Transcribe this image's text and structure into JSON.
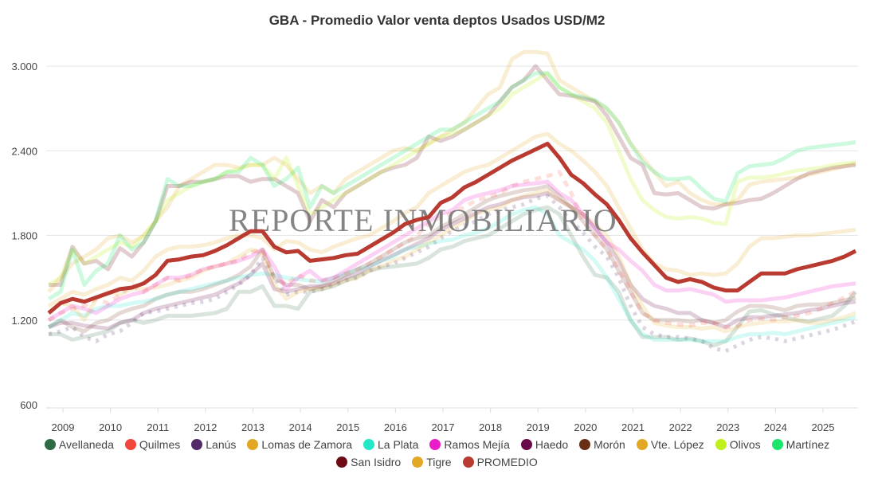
{
  "title": "GBA - Promedio Valor venta deptos Usados USD/M2",
  "watermark": "REPORTE INMOBILIARIO",
  "y_axis": {
    "ticks": [
      {
        "value": 3000,
        "label": "3.000"
      },
      {
        "value": 2400,
        "label": "2.400"
      },
      {
        "value": 1800,
        "label": "1.800"
      },
      {
        "value": 1200,
        "label": "1.200"
      },
      {
        "value": 600,
        "label": "600"
      }
    ]
  },
  "x_axis": {
    "ticks": [
      "2009",
      "2010",
      "2011",
      "2012",
      "2013",
      "2014",
      "2015",
      "2016",
      "2017",
      "2018",
      "2019",
      "2020",
      "2021",
      "2022",
      "2023",
      "2024",
      "2025"
    ]
  },
  "legend": {
    "row1": [
      {
        "label": "Avellaneda",
        "color": "#2e6b45"
      },
      {
        "label": "Quilmes",
        "color": "#f0473a"
      },
      {
        "label": "Lanús",
        "color": "#54296a"
      },
      {
        "label": "Lomas de Zamora",
        "color": "#e2a824"
      },
      {
        "label": "La Plata",
        "color": "#22e8c8"
      },
      {
        "label": "Ramos Mejía",
        "color": "#ec1bc8"
      },
      {
        "label": "Haedo",
        "color": "#6b0a4a"
      },
      {
        "label": "Morón",
        "color": "#6a2e16"
      },
      {
        "label": "Vte. López",
        "color": "#e2a824"
      },
      {
        "label": "Olivos",
        "color": "#bff01b"
      },
      {
        "label": "Martínez",
        "color": "#1be56a"
      }
    ],
    "row2": [
      {
        "label": "San Isidro",
        "color": "#6e0a14"
      },
      {
        "label": "Tigre",
        "color": "#e2a824"
      },
      {
        "label": "PROMEDIO",
        "color": "#b83a30"
      }
    ]
  },
  "chart_data": {
    "type": "line",
    "title": "GBA - Promedio Valor venta deptos Usados USD/M2",
    "xlabel": "",
    "ylabel": "USD/M2",
    "ylim": [
      600,
      3150
    ],
    "grid": true,
    "legend_position": "bottom",
    "x_start": 2008.7,
    "x_step": 0.25,
    "series": [
      {
        "name": "PROMEDIO",
        "color": "#b83a30",
        "opacity": 1,
        "width": 5,
        "dash": "",
        "values": [
          1250,
          1320,
          1350,
          1330,
          1360,
          1390,
          1420,
          1430,
          1460,
          1520,
          1620,
          1630,
          1650,
          1660,
          1690,
          1730,
          1780,
          1830,
          1830,
          1720,
          1680,
          1690,
          1620,
          1630,
          1640,
          1660,
          1670,
          1720,
          1770,
          1820,
          1880,
          1910,
          1930,
          2030,
          2070,
          2140,
          2180,
          2230,
          2280,
          2330,
          2370,
          2410,
          2450,
          2350,
          2230,
          2170,
          2090,
          2020,
          1910,
          1780,
          1680,
          1590,
          1500,
          1470,
          1490,
          1470,
          1430,
          1410,
          1410,
          1470,
          1530,
          1530,
          1530,
          1560,
          1580,
          1600,
          1620,
          1650,
          1690
        ]
      },
      {
        "name": "Martínez",
        "color": "#1be56a",
        "opacity": 0.22,
        "width": 5,
        "dash": "",
        "values": [
          1350,
          1400,
          1700,
          1450,
          1550,
          1600,
          1800,
          1700,
          1750,
          1900,
          2200,
          2150,
          2150,
          2180,
          2200,
          2250,
          2250,
          2350,
          2300,
          2150,
          2200,
          2280,
          2000,
          2150,
          2100,
          2150,
          2200,
          2250,
          2300,
          2350,
          2400,
          2450,
          2500,
          2550,
          2550,
          2600,
          2650,
          2700,
          2750,
          2850,
          2900,
          2950,
          2950,
          2850,
          2800,
          2780,
          2760,
          2700,
          2600,
          2450,
          2320,
          2250,
          2200,
          2200,
          2210,
          2130,
          2060,
          2040,
          2240,
          2290,
          2300,
          2310,
          2350,
          2400,
          2420,
          2430,
          2440,
          2450,
          2460
        ]
      },
      {
        "name": "Olivos",
        "color": "#bff01b",
        "opacity": 0.22,
        "width": 5,
        "dash": "",
        "values": [
          1450,
          1500,
          1700,
          1600,
          1650,
          1700,
          1750,
          1720,
          1800,
          1900,
          2050,
          2100,
          2150,
          2180,
          2200,
          2250,
          2270,
          2300,
          2300,
          2200,
          2350,
          2150,
          1950,
          2000,
          2050,
          2100,
          2150,
          2200,
          2250,
          2300,
          2350,
          2400,
          2450,
          2500,
          2520,
          2550,
          2600,
          2650,
          2700,
          2800,
          2850,
          2900,
          2950,
          2850,
          2800,
          2750,
          2700,
          2600,
          2400,
          2200,
          2050,
          1980,
          1930,
          1920,
          1930,
          1920,
          1890,
          1880,
          2180,
          2210,
          2210,
          2220,
          2240,
          2260,
          2270,
          2280,
          2300,
          2310,
          2320
        ]
      },
      {
        "name": "San Isidro",
        "color": "#6e0a14",
        "opacity": 0.2,
        "width": 5,
        "dash": "",
        "values": [
          1450,
          1450,
          1720,
          1600,
          1620,
          1560,
          1710,
          1650,
          1750,
          1900,
          2150,
          2150,
          2180,
          2180,
          2200,
          2220,
          2220,
          2180,
          2200,
          2200,
          2150,
          2100,
          1900,
          2050,
          2000,
          2100,
          2150,
          2200,
          2250,
          2280,
          2300,
          2350,
          2500,
          2470,
          2500,
          2550,
          2600,
          2650,
          2750,
          2850,
          2900,
          3000,
          2900,
          2800,
          2790,
          2770,
          2750,
          2650,
          2500,
          2350,
          2300,
          2100,
          2090,
          2100,
          2050,
          2000,
          1990,
          2020,
          2030,
          2050,
          2060,
          2100,
          2150,
          2200,
          2240,
          2260,
          2280,
          2290,
          2300
        ]
      },
      {
        "name": "Tigre",
        "color": "#e2a824",
        "opacity": 0.2,
        "width": 5,
        "dash": "",
        "values": [
          1300,
          1350,
          1400,
          1380,
          1420,
          1450,
          1500,
          1480,
          1550,
          1650,
          1700,
          1720,
          1720,
          1730,
          1750,
          1780,
          1800,
          1800,
          1780,
          1700,
          1760,
          1750,
          1700,
          1680,
          1720,
          1750,
          1780,
          1800,
          1850,
          1900,
          1960,
          2000,
          2100,
          2150,
          2200,
          2250,
          2280,
          2300,
          2350,
          2400,
          2450,
          2500,
          2520,
          2450,
          2400,
          2330,
          2250,
          2150,
          2000,
          1850,
          1700,
          1600,
          1560,
          1550,
          1520,
          1530,
          1520,
          1530,
          1600,
          1720,
          1780,
          1780,
          1790,
          1800,
          1800,
          1810,
          1820,
          1830,
          1840
        ]
      },
      {
        "name": "Vte. López",
        "color": "#e2a824",
        "opacity": 0.2,
        "width": 5,
        "dash": "",
        "values": [
          1400,
          1500,
          1600,
          1650,
          1700,
          1780,
          1800,
          1750,
          1800,
          1900,
          2000,
          2150,
          2200,
          2250,
          2300,
          2300,
          2280,
          2300,
          2300,
          2350,
          2300,
          2200,
          2100,
          2150,
          2100,
          2200,
          2250,
          2300,
          2350,
          2400,
          2420,
          2400,
          2450,
          2500,
          2550,
          2600,
          2700,
          2800,
          2850,
          3050,
          3100,
          3100,
          3090,
          2900,
          2850,
          2800,
          2750,
          2700,
          2600,
          2450,
          2350,
          2250,
          2150,
          2180,
          2100,
          2050,
          2020,
          2020,
          2050,
          2160,
          2180,
          2190,
          2200,
          2210,
          2230,
          2250,
          2270,
          2290,
          2310
        ]
      },
      {
        "name": "Ramos Mejía",
        "color": "#ec1bc8",
        "opacity": 0.2,
        "width": 5,
        "dash": "",
        "values": [
          1200,
          1250,
          1300,
          1280,
          1250,
          1300,
          1350,
          1380,
          1400,
          1450,
          1500,
          1500,
          1520,
          1560,
          1580,
          1600,
          1620,
          1650,
          1700,
          1580,
          1420,
          1500,
          1550,
          1480,
          1500,
          1550,
          1600,
          1650,
          1700,
          1750,
          1800,
          1850,
          1900,
          1950,
          1980,
          2050,
          2080,
          2100,
          2120,
          2150,
          2160,
          2170,
          2180,
          2100,
          2050,
          1950,
          1850,
          1750,
          1700,
          1620,
          1550,
          1450,
          1410,
          1410,
          1420,
          1400,
          1380,
          1330,
          1340,
          1340,
          1340,
          1350,
          1360,
          1380,
          1400,
          1420,
          1440,
          1450,
          1460
        ]
      },
      {
        "name": "Quilmes",
        "color": "#f0473a",
        "opacity": 0.18,
        "width": 5,
        "dash": "8,7",
        "values": [
          1200,
          1250,
          1280,
          1300,
          1350,
          1320,
          1380,
          1450,
          1400,
          1450,
          1500,
          1480,
          1520,
          1560,
          1580,
          1600,
          1620,
          1680,
          1700,
          1500,
          1450,
          1520,
          1480,
          1480,
          1500,
          1530,
          1560,
          1600,
          1650,
          1700,
          1750,
          1800,
          1880,
          1930,
          1960,
          2000,
          2050,
          2070,
          2100,
          2150,
          2180,
          2200,
          2220,
          2250,
          2100,
          1900,
          1800,
          1700,
          1560,
          1400,
          1250,
          1200,
          1180,
          1170,
          1160,
          1180,
          1180,
          1150,
          1160,
          1200,
          1210,
          1200,
          1220,
          1230,
          1250,
          1280,
          1320,
          1360,
          1400
        ]
      },
      {
        "name": "Lomas de Zamora",
        "color": "#e2a824",
        "opacity": 0.18,
        "width": 5,
        "dash": "",
        "values": [
          1250,
          1320,
          1300,
          1200,
          1350,
          1400,
          1380,
          1420,
          1420,
          1430,
          1450,
          1480,
          1500,
          1550,
          1580,
          1600,
          1650,
          1700,
          1680,
          1450,
          1350,
          1400,
          1420,
          1420,
          1450,
          1480,
          1500,
          1550,
          1580,
          1620,
          1650,
          1700,
          1750,
          1800,
          1850,
          1900,
          1950,
          1980,
          2000,
          2050,
          2080,
          2100,
          2120,
          2050,
          2000,
          1950,
          1880,
          1800,
          1650,
          1450,
          1300,
          1180,
          1160,
          1150,
          1150,
          1140,
          1150,
          1120,
          1150,
          1170,
          1180,
          1190,
          1190,
          1200,
          1180,
          1180,
          1200,
          1220,
          1250
        ]
      },
      {
        "name": "La Plata",
        "color": "#22e8c8",
        "opacity": 0.2,
        "width": 5,
        "dash": "",
        "values": [
          1150,
          1200,
          1250,
          1230,
          1280,
          1300,
          1300,
          1320,
          1330,
          1350,
          1380,
          1400,
          1420,
          1440,
          1460,
          1480,
          1500,
          1520,
          1530,
          1520,
          1500,
          1490,
          1480,
          1470,
          1500,
          1530,
          1560,
          1580,
          1620,
          1650,
          1700,
          1720,
          1740,
          1760,
          1770,
          1800,
          1820,
          1850,
          1900,
          1950,
          1980,
          2000,
          1950,
          1800,
          1750,
          1700,
          1620,
          1500,
          1350,
          1200,
          1100,
          1060,
          1060,
          1060,
          1060,
          1050,
          1050,
          1050,
          1080,
          1100,
          1100,
          1110,
          1100,
          1120,
          1140,
          1160,
          1180,
          1200,
          1220
        ]
      },
      {
        "name": "Haedo",
        "color": "#6b0a4a",
        "opacity": 0.2,
        "width": 5,
        "dash": "",
        "values": [
          1150,
          1180,
          1180,
          1160,
          1150,
          1140,
          1180,
          1200,
          1250,
          1280,
          1300,
          1320,
          1340,
          1360,
          1380,
          1420,
          1460,
          1520,
          1600,
          1420,
          1400,
          1420,
          1440,
          1440,
          1460,
          1500,
          1530,
          1580,
          1620,
          1660,
          1700,
          1740,
          1780,
          1840,
          1880,
          1920,
          1960,
          2000,
          2020,
          2050,
          2070,
          2080,
          2100,
          2050,
          2000,
          1950,
          1850,
          1750,
          1620,
          1450,
          1350,
          1300,
          1280,
          1250,
          1250,
          1200,
          1180,
          1150,
          1200,
          1220,
          1220,
          1230,
          1240,
          1250,
          1270,
          1280,
          1300,
          1320,
          1330
        ]
      },
      {
        "name": "Morón",
        "color": "#6a2e16",
        "opacity": 0.18,
        "width": 5,
        "dash": "",
        "values": [
          1150,
          1200,
          1150,
          1120,
          1180,
          1200,
          1250,
          1280,
          1300,
          1350,
          1380,
          1400,
          1400,
          1420,
          1450,
          1480,
          1520,
          1580,
          1700,
          1500,
          1450,
          1450,
          1420,
          1440,
          1480,
          1520,
          1560,
          1600,
          1650,
          1700,
          1750,
          1780,
          1800,
          1860,
          1900,
          1950,
          2000,
          2050,
          2080,
          2100,
          2120,
          2130,
          2150,
          2080,
          2000,
          1900,
          1800,
          1700,
          1550,
          1400,
          1250,
          1200,
          1200,
          1200,
          1190,
          1200,
          1180,
          1200,
          1260,
          1300,
          1300,
          1290,
          1270,
          1300,
          1310,
          1310,
          1320,
          1340,
          1360
        ]
      },
      {
        "name": "Avellaneda",
        "color": "#2e6b45",
        "opacity": 0.18,
        "width": 5,
        "dash": "",
        "values": [
          1100,
          1100,
          1060,
          1080,
          1100,
          1120,
          1180,
          1200,
          1180,
          1200,
          1230,
          1230,
          1230,
          1240,
          1250,
          1280,
          1400,
          1400,
          1440,
          1300,
          1300,
          1280,
          1400,
          1420,
          1440,
          1480,
          1510,
          1550,
          1570,
          1580,
          1590,
          1600,
          1640,
          1700,
          1720,
          1760,
          1780,
          1800,
          1850,
          1900,
          1950,
          1980,
          2000,
          1950,
          1800,
          1650,
          1520,
          1500,
          1400,
          1200,
          1080,
          1080,
          1080,
          1060,
          1070,
          1050,
          1020,
          1050,
          1150,
          1260,
          1270,
          1240,
          1220,
          1200,
          1190,
          1210,
          1230,
          1300,
          1400
        ]
      },
      {
        "name": "Lanús",
        "color": "#54296a",
        "opacity": 0.2,
        "width": 5,
        "dash": "4,7",
        "values": [
          1100,
          1120,
          1150,
          1080,
          1050,
          1100,
          1120,
          1180,
          1250,
          1260,
          1280,
          1300,
          1320,
          1330,
          1350,
          1400,
          1450,
          1520,
          1640,
          1500,
          1380,
          1400,
          1400,
          1420,
          1450,
          1480,
          1500,
          1550,
          1580,
          1600,
          1640,
          1680,
          1720,
          1780,
          1830,
          1870,
          1900,
          1950,
          1980,
          2000,
          2020,
          2060,
          2080,
          2000,
          1900,
          1820,
          1720,
          1650,
          1500,
          1300,
          1150,
          1100,
          1080,
          1080,
          1070,
          1050,
          1000,
          980,
          1020,
          1060,
          1080,
          1070,
          1050,
          1070,
          1090,
          1110,
          1130,
          1160,
          1190
        ]
      }
    ]
  }
}
